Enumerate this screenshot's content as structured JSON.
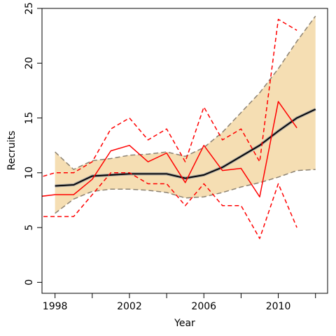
{
  "chart_data": {
    "type": "line",
    "title": "",
    "xlabel": "Year",
    "ylabel": "Recruits",
    "xlim": [
      1997.3,
      1012.65
    ],
    "ylim": [
      -1,
      25
    ],
    "x_ticks": [
      1998,
      2000,
      2002,
      2004,
      2006,
      2008,
      2010,
      2012
    ],
    "x_tick_labels": [
      "1998",
      "",
      "2002",
      "",
      "2006",
      "",
      "2010",
      ""
    ],
    "y_ticks": [
      0,
      5,
      10,
      15,
      20,
      25
    ],
    "y_tick_labels": [
      "0",
      "5",
      "10",
      "15",
      "20",
      "25"
    ],
    "grid": false,
    "legend": "none",
    "band": {
      "fill_color": "#f5deb3",
      "edge_color": "#8c8272",
      "x": [
        1998,
        1999,
        2000,
        2001,
        2002,
        2003,
        2004,
        2005,
        2006,
        2007,
        2008,
        2009,
        2010,
        2011,
        2012
      ],
      "lower": [
        6.3,
        7.6,
        8.3,
        8.5,
        8.5,
        8.4,
        8.2,
        7.7,
        7.8,
        8.2,
        8.7,
        9.1,
        9.6,
        10.2,
        10.3
      ],
      "upper": [
        11.9,
        10.3,
        11.1,
        11.3,
        11.6,
        11.7,
        11.9,
        11.5,
        12.3,
        13.7,
        15.5,
        17.3,
        19.5,
        22.0,
        24.3
      ]
    },
    "series": [
      {
        "color": "#000000",
        "style": "solid",
        "x": [
          1998,
          1999,
          2000,
          2001,
          2002,
          2003,
          2004,
          2005,
          2006,
          2007,
          2008,
          2009,
          2010,
          2011,
          2012
        ],
        "values": [
          8.8,
          8.9,
          9.7,
          9.8,
          9.9,
          9.9,
          9.9,
          9.5,
          9.8,
          10.5,
          11.5,
          12.5,
          13.8,
          15.0,
          15.8
        ]
      },
      {
        "color": "#ff0000",
        "style": "solid",
        "x": [
          1997,
          1998,
          1999,
          2000,
          2001,
          2002,
          2003,
          2004,
          2005,
          2006,
          2007,
          2008,
          2009,
          2010,
          2011
        ],
        "values": [
          7.8,
          8.0,
          8.0,
          9.4,
          12.0,
          12.5,
          11.0,
          11.8,
          9.1,
          12.5,
          10.2,
          10.4,
          7.8,
          16.5,
          14.1
        ]
      },
      {
        "color": "#ff0000",
        "style": "dashed",
        "x": [
          1997,
          1998,
          1999,
          2000,
          2001,
          2002,
          2003,
          2004,
          2005,
          2006,
          2007,
          2008,
          2009,
          2010,
          2011
        ],
        "values": [
          9.5,
          10.0,
          10.0,
          11.0,
          14.0,
          15.0,
          13.0,
          14.0,
          11.0,
          16.0,
          13.0,
          14.0,
          11.0,
          24.0,
          23.0
        ]
      },
      {
        "color": "#ff0000",
        "style": "dashed",
        "x": [
          1997,
          1998,
          1999,
          2000,
          2001,
          2002,
          2003,
          2004,
          2005,
          2006,
          2007,
          2008,
          2009,
          2010,
          2011
        ],
        "values": [
          6.0,
          6.0,
          6.0,
          8.0,
          10.0,
          10.0,
          9.0,
          9.0,
          7.0,
          9.0,
          7.0,
          7.0,
          4.0,
          9.0,
          5.0
        ]
      }
    ]
  }
}
